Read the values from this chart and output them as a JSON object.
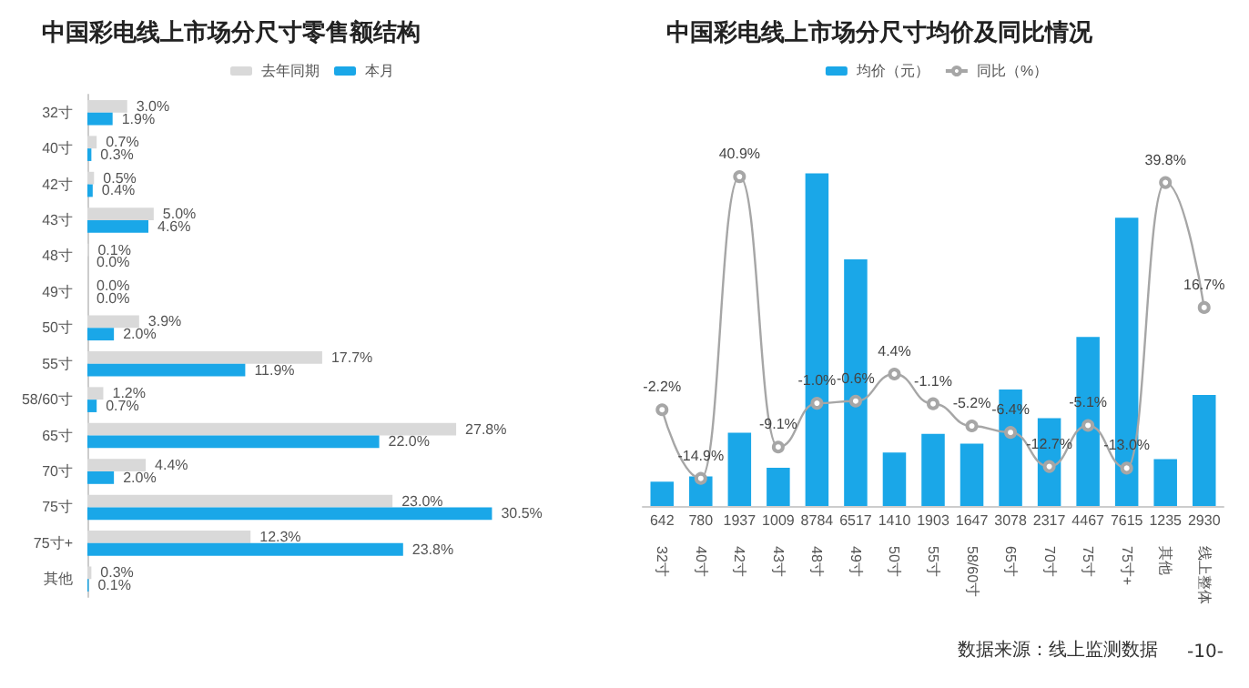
{
  "chart_data": [
    {
      "type": "bar",
      "title": "中国彩电线上市场分尺寸零售额结构",
      "orientation": "horizontal",
      "legend": "top",
      "tick_labels": "y",
      "categories": [
        "32寸",
        "40寸",
        "42寸",
        "43寸",
        "48寸",
        "49寸",
        "50寸",
        "55寸",
        "58/60寸",
        "65寸",
        "70寸",
        "75寸",
        "75寸+",
        "其他"
      ],
      "series": [
        {
          "name": "去年同期",
          "color": "#d9d9d9",
          "values": [
            3.0,
            0.7,
            0.5,
            5.0,
            0.1,
            0.0,
            3.9,
            17.7,
            1.2,
            27.8,
            4.4,
            23.0,
            12.3,
            0.3
          ],
          "value_labels": [
            "3.0%",
            "0.7%",
            "0.5%",
            "5.0%",
            "0.1%",
            "0.0%",
            "3.9%",
            "17.7%",
            "1.2%",
            "27.8%",
            "4.4%",
            "23.0%",
            "12.3%",
            "0.3%"
          ]
        },
        {
          "name": "本月",
          "color": "#1aa7e8",
          "values": [
            1.9,
            0.3,
            0.4,
            4.6,
            0.0,
            0.0,
            2.0,
            11.9,
            0.7,
            22.0,
            2.0,
            30.5,
            23.8,
            0.1
          ],
          "value_labels": [
            "1.9%",
            "0.3%",
            "0.4%",
            "4.6%",
            "0.0%",
            "0.0%",
            "2.0%",
            "11.9%",
            "0.7%",
            "22.0%",
            "2.0%",
            "30.5%",
            "23.8%",
            "0.1%"
          ]
        }
      ]
    },
    {
      "type": "bar",
      "title": "中国彩电线上市场分尺寸均价及同比情况",
      "legend": "top",
      "tick_labels": "x",
      "categories": [
        "32寸",
        "40寸",
        "42寸",
        "43寸",
        "48寸",
        "49寸",
        "50寸",
        "55寸",
        "58/60寸",
        "65寸",
        "70寸",
        "75寸",
        "75寸+",
        "其他",
        "线上整体"
      ],
      "series": [
        {
          "name": "均价（元）",
          "color": "#1aa7e8",
          "values": [
            642,
            780,
            1937,
            1009,
            8784,
            6517,
            1410,
            1903,
            1647,
            3078,
            2317,
            4467,
            7615,
            1235,
            2930
          ],
          "value_labels": [
            "642",
            "780",
            "1937",
            "1009",
            "8784",
            "6517",
            "1410",
            "1903",
            "1647",
            "3078",
            "2317",
            "4467",
            "7615",
            "1235",
            "2930"
          ]
        },
        {
          "name": "同比（%）",
          "type": "line",
          "axis": "y2",
          "color": "#a6a6a6",
          "marker": "circle",
          "values": [
            -2.2,
            -14.9,
            40.9,
            -9.1,
            -1.0,
            -0.6,
            4.4,
            -1.1,
            -5.2,
            -6.4,
            -12.7,
            -5.1,
            -13.0,
            39.8,
            16.7
          ],
          "value_labels": [
            "-2.2%",
            "-14.9%",
            "40.9%",
            "-9.1%",
            "-1.0%",
            "-0.6%",
            "4.4%",
            "-1.1%",
            "-5.2%",
            "-6.4%",
            "-12.7%",
            "-5.1%",
            "-13.0%",
            "39.8%",
            "16.7%"
          ]
        }
      ],
      "annotations": [
        "数据来源：线上监测数据",
        "-10-"
      ]
    }
  ]
}
